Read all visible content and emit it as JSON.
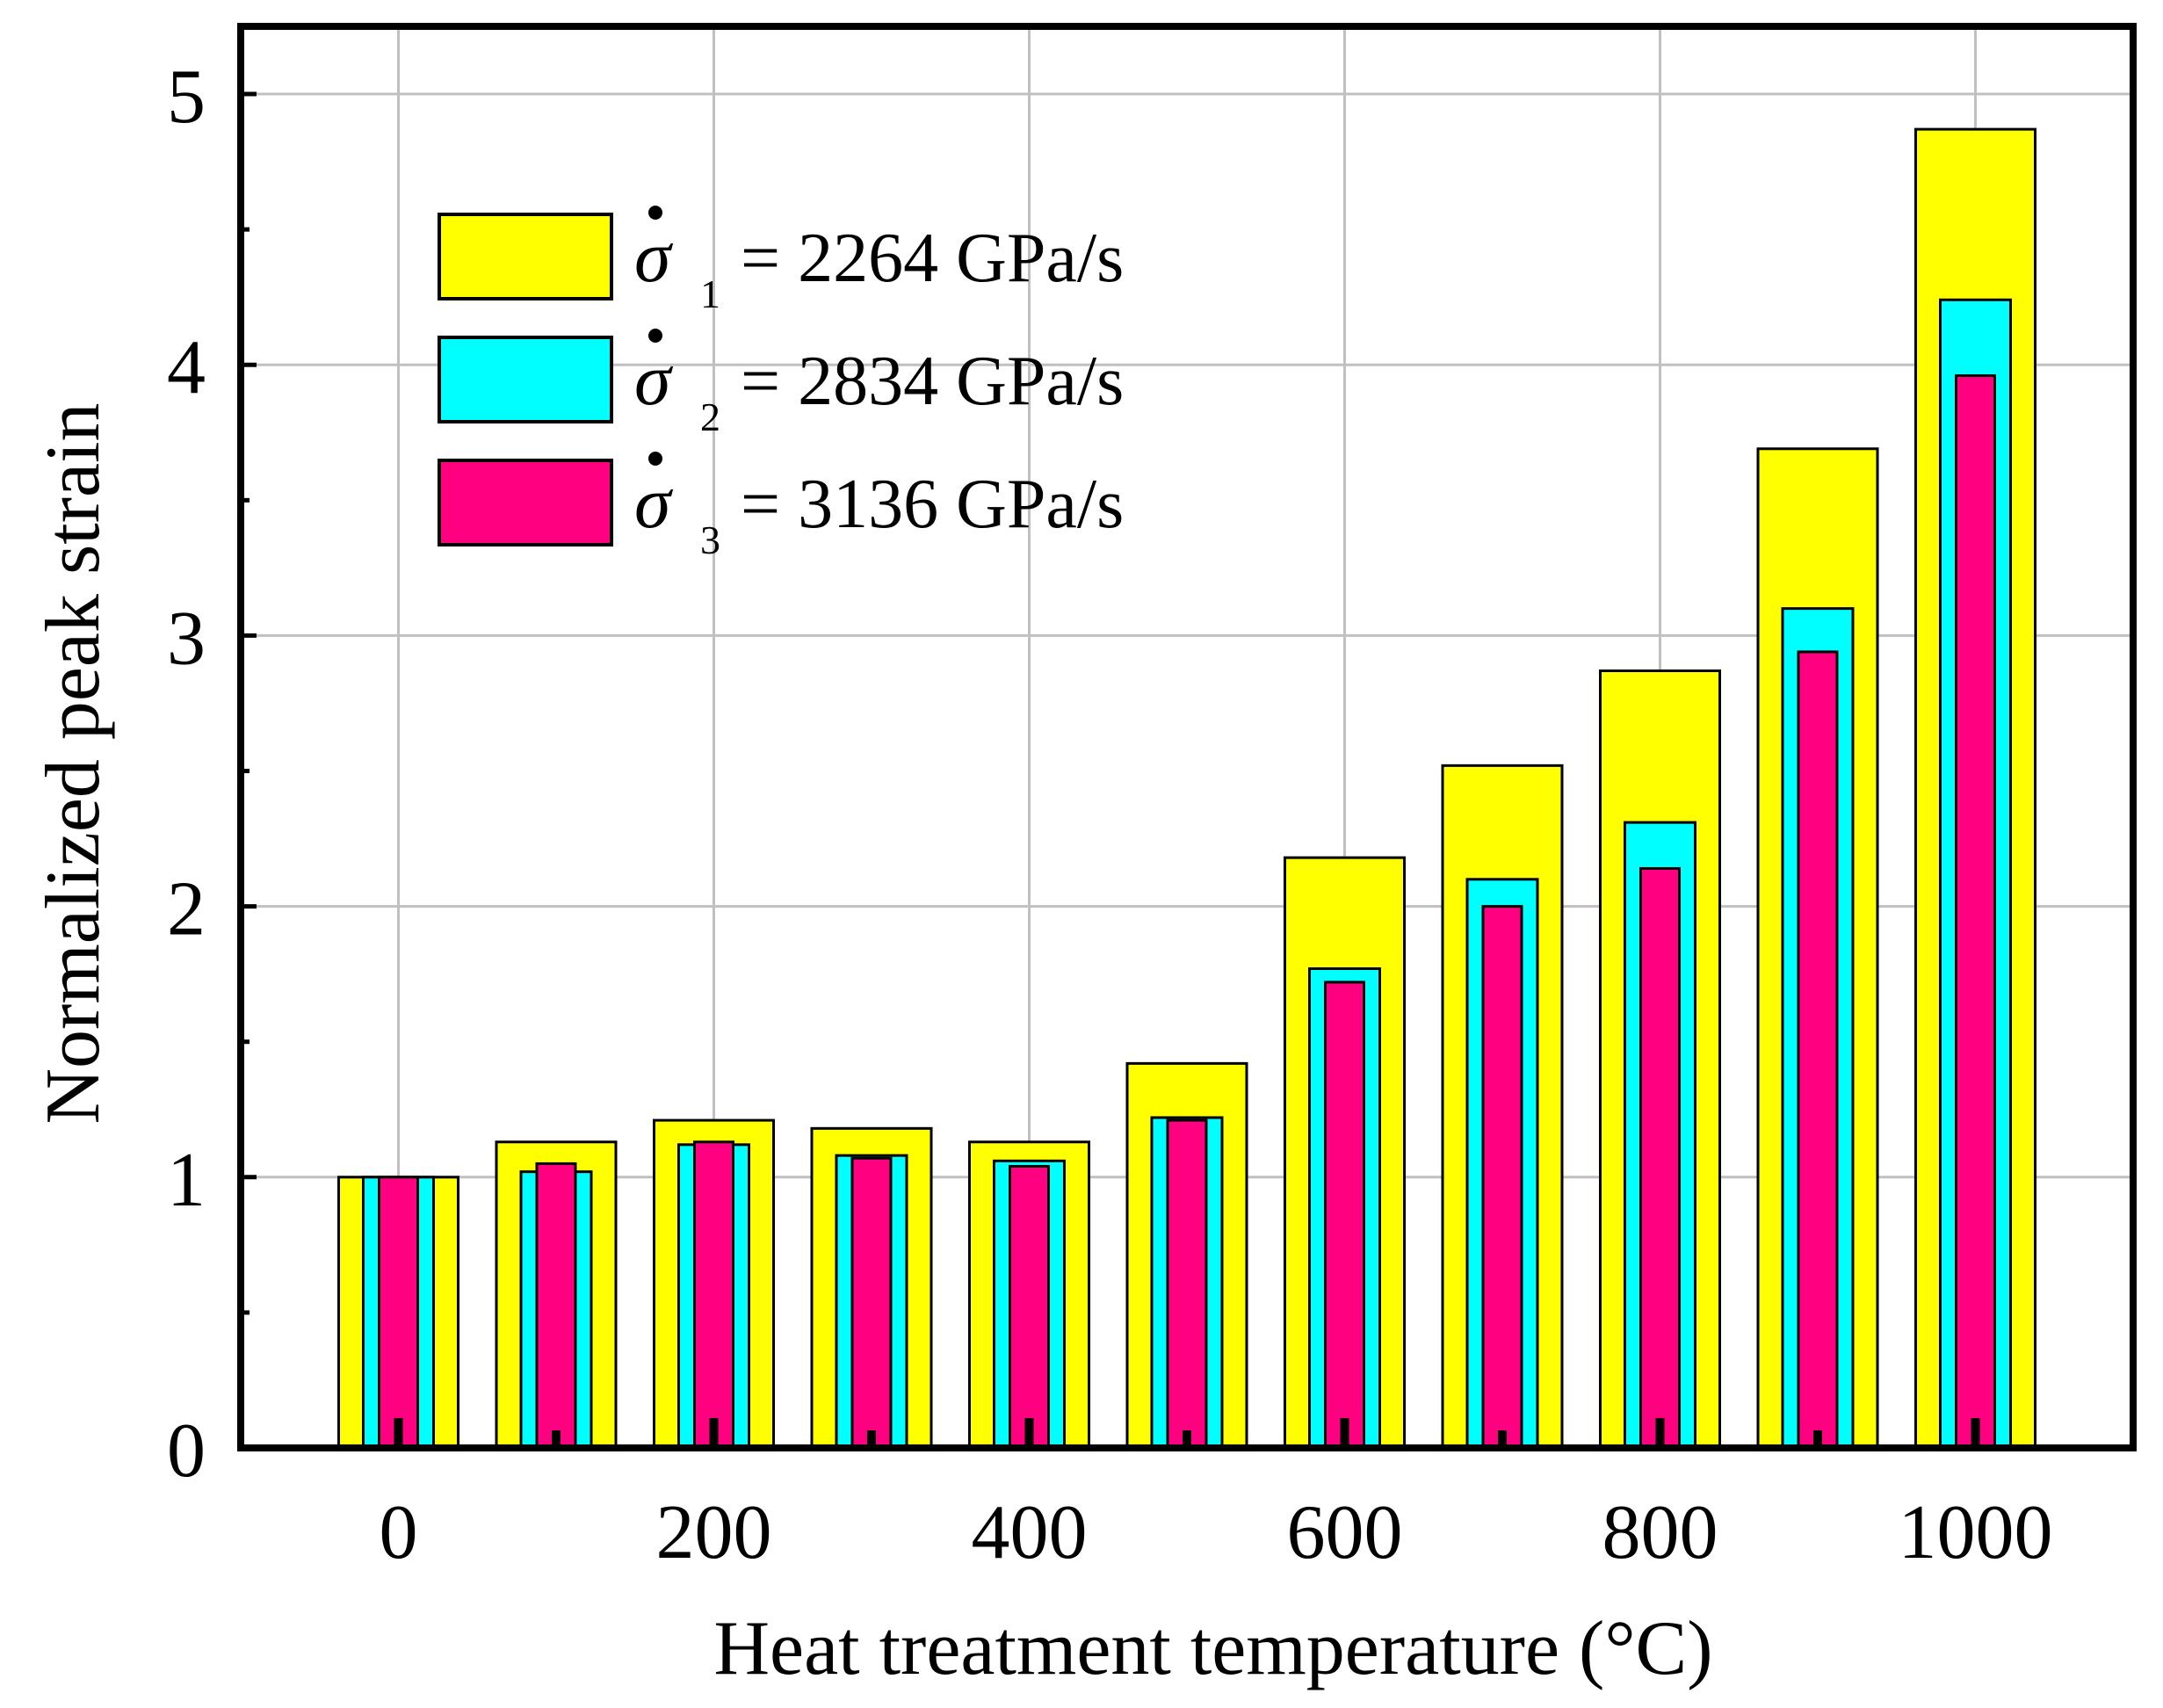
{
  "chart_data": {
    "type": "bar",
    "title": "",
    "xlabel": "Heat treatment temperature (°C)",
    "ylabel": "Normalized peak strain",
    "categories": [
      0,
      100,
      200,
      300,
      400,
      500,
      600,
      700,
      800,
      900,
      1000
    ],
    "x_tick_labels": [
      "0",
      "200",
      "400",
      "600",
      "800",
      "1000"
    ],
    "x_tick_values": [
      0,
      200,
      400,
      600,
      800,
      1000
    ],
    "y_tick_labels": [
      "0",
      "1",
      "2",
      "3",
      "4",
      "5"
    ],
    "y_tick_values": [
      0,
      1,
      2,
      3,
      4,
      5
    ],
    "xlim": [
      -100,
      1100
    ],
    "ylim": [
      0,
      5.25
    ],
    "grid": true,
    "legend_position": "top-left",
    "layout_mode": "overlapping-nested",
    "series": [
      {
        "name": "σ̇1 = 2264 GPa/s",
        "symbol": "σ",
        "subscript": "1",
        "label": "= 2264 GPa/s",
        "color": "#ffff00",
        "values": [
          1.0,
          1.13,
          1.21,
          1.18,
          1.13,
          1.42,
          2.18,
          2.52,
          2.87,
          3.69,
          4.87
        ]
      },
      {
        "name": "σ̇2 = 2834 GPa/s",
        "symbol": "σ",
        "subscript": "2",
        "label": "= 2834 GPa/s",
        "color": "#00ffff",
        "values": [
          1.0,
          1.02,
          1.12,
          1.08,
          1.06,
          1.22,
          1.77,
          2.1,
          2.31,
          3.1,
          4.24
        ]
      },
      {
        "name": "σ̇3 = 3136 GPa/s",
        "symbol": "σ",
        "subscript": "3",
        "label": "= 3136 GPa/s",
        "color": "#ff0080",
        "values": [
          1.0,
          1.05,
          1.13,
          1.07,
          1.04,
          1.21,
          1.72,
          2.0,
          2.14,
          2.94,
          3.96
        ]
      }
    ],
    "stroke_color": "#000000",
    "grid_color": "#c0c0c0"
  }
}
